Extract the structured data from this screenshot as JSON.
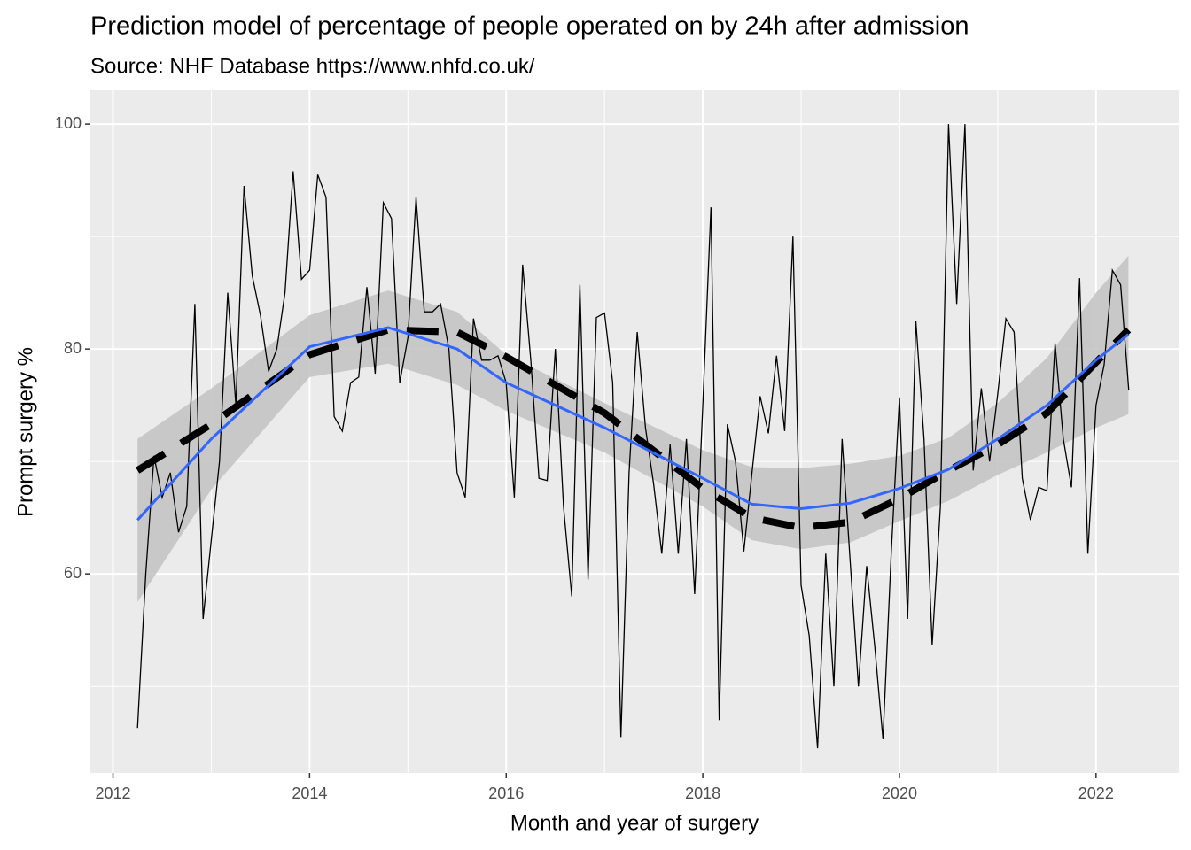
{
  "chart_data": {
    "type": "line",
    "title": "Prediction model of percentage of people operated on by 24h after admission",
    "subtitle": "Source: NHF Database https://www.nhfd.co.uk/",
    "x_label": "Month and year of surgery",
    "y_label": "Prompt surgery %",
    "xlim": [
      2011.77,
      2022.84
    ],
    "ylim": [
      42.3,
      103
    ],
    "xticks": [
      2012,
      2014,
      2016,
      2018,
      2020,
      2022
    ],
    "xminor": [
      2013,
      2015,
      2017,
      2019,
      2021
    ],
    "yticks": [
      60,
      80,
      100
    ],
    "yminor": [
      50,
      70,
      90
    ],
    "grid": true,
    "color": "#000000",
    "x": [
      2012.25,
      2012.333,
      2012.417,
      2012.5,
      2012.583,
      2012.667,
      2012.75,
      2012.833,
      2012.917,
      2013,
      2013.083,
      2013.167,
      2013.25,
      2013.333,
      2013.417,
      2013.5,
      2013.583,
      2013.667,
      2013.75,
      2013.833,
      2013.917,
      2014,
      2014.083,
      2014.167,
      2014.25,
      2014.333,
      2014.417,
      2014.5,
      2014.583,
      2014.667,
      2014.75,
      2014.833,
      2014.917,
      2015,
      2015.083,
      2015.167,
      2015.25,
      2015.333,
      2015.417,
      2015.5,
      2015.583,
      2015.667,
      2015.75,
      2015.833,
      2015.917,
      2016,
      2016.083,
      2016.167,
      2016.25,
      2016.333,
      2016.417,
      2016.5,
      2016.583,
      2016.667,
      2016.75,
      2016.833,
      2016.917,
      2017,
      2017.083,
      2017.167,
      2017.25,
      2017.333,
      2017.417,
      2017.5,
      2017.583,
      2017.667,
      2017.75,
      2017.833,
      2017.917,
      2018,
      2018.083,
      2018.167,
      2018.25,
      2018.333,
      2018.417,
      2018.5,
      2018.583,
      2018.667,
      2018.75,
      2018.833,
      2018.917,
      2019,
      2019.083,
      2019.167,
      2019.25,
      2019.333,
      2019.417,
      2019.5,
      2019.583,
      2019.667,
      2019.75,
      2019.833,
      2019.917,
      2020,
      2020.083,
      2020.167,
      2020.25,
      2020.333,
      2020.417,
      2020.5,
      2020.583,
      2020.667,
      2020.75,
      2020.833,
      2020.917,
      2021,
      2021.083,
      2021.167,
      2021.25,
      2021.333,
      2021.417,
      2021.5,
      2021.583,
      2021.667,
      2021.75,
      2021.833,
      2021.917,
      2022,
      2022.083,
      2022.167,
      2022.25,
      2022.333
    ],
    "values": [
      46.3,
      60,
      70.5,
      66.8,
      69,
      63.7,
      66,
      84,
      56,
      63,
      70,
      85,
      75,
      94.5,
      86.5,
      83,
      78,
      80,
      85,
      95.8,
      86.2,
      87,
      95.5,
      93.5,
      74,
      72.7,
      77,
      77.5,
      85.5,
      77.8,
      93,
      91.6,
      77,
      81,
      93.5,
      83.3,
      83.3,
      84,
      80,
      69,
      66.8,
      82.7,
      79,
      79,
      79.4,
      77,
      66.8,
      87.5,
      79,
      68.5,
      68.3,
      80,
      66,
      58,
      85.7,
      59.5,
      82.8,
      83.2,
      77,
      45.5,
      69,
      81.5,
      73,
      68,
      61.8,
      71.5,
      61.8,
      72,
      58.2,
      75,
      92.6,
      47,
      73.3,
      70,
      62,
      69,
      75.8,
      72.5,
      79.4,
      72.7,
      90,
      59,
      54.5,
      44.5,
      61.8,
      50,
      72,
      61,
      50,
      60.7,
      53.5,
      45.3,
      62,
      75.7,
      56,
      82.5,
      72,
      53.7,
      66,
      100,
      84,
      100,
      69.2,
      76.5,
      70,
      76,
      82.7,
      81.5,
      68.5,
      64.8,
      67.7,
      67.4,
      80.5,
      72,
      67.7,
      86.3,
      61.8,
      75,
      78.6,
      87,
      85.7,
      76.3
    ],
    "smooth": {
      "color": "#3366ff",
      "fill": "#c4c4c4",
      "x": [
        2012.25,
        2013,
        2014,
        2014.8,
        2015.5,
        2016,
        2017,
        2018,
        2018.5,
        2019,
        2019.5,
        2020,
        2020.5,
        2021,
        2021.5,
        2022,
        2022.33
      ],
      "values": [
        64.8,
        72,
        80.2,
        81.9,
        80,
        77,
        73,
        68.5,
        66.2,
        65.8,
        66.3,
        67.6,
        69.3,
        72,
        75,
        79,
        81.3
      ],
      "lower": [
        57.5,
        67.5,
        77.5,
        78.7,
        76.8,
        74.5,
        70.8,
        66,
        63,
        62.2,
        62.8,
        64.7,
        66.5,
        68.8,
        70.8,
        73,
        74.2
      ],
      "upper": [
        72,
        76.5,
        83,
        85.2,
        83.3,
        79.5,
        75.2,
        71,
        69.5,
        69.4,
        69.8,
        70.5,
        72.1,
        75.2,
        79.2,
        85,
        88.3
      ]
    },
    "trend": {
      "color": "#000000",
      "x": [
        2012.25,
        2013,
        2014,
        2014.8,
        2015.5,
        2016,
        2017,
        2018,
        2018.5,
        2019,
        2019.5,
        2020,
        2020.5,
        2021,
        2021.5,
        2022,
        2022.33
      ],
      "values": [
        69.2,
        73.3,
        79.5,
        81.7,
        81.5,
        79.3,
        74.3,
        67.6,
        65,
        64.1,
        64.6,
        66.7,
        69.2,
        71.5,
        74.3,
        78.8,
        81.7
      ]
    }
  }
}
